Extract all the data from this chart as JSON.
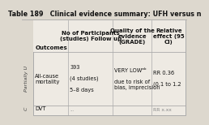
{
  "title": "Table 189   Clinical evidence summary: UFH versus n",
  "col_headers": [
    "Outcomes",
    "No of Participants\n(studies) Follow up",
    "Quality of the\nevidence\n(GRADE)",
    "Relative\neffect (95\nCI)"
  ],
  "row1_col0": "All-cause\nmortality",
  "row1_col1": "393\n\n(4 studies)\n\n5–8 days",
  "row1_col2": "VERY LOWᵃᵇ\n\ndue to risk of\nbias, imprecision",
  "row1_col3": "RR 0.36\n\n(0.1 to 1.2",
  "row2_col0": "DVT",
  "row2_col1": "...",
  "row2_col3": "RR x.xx",
  "side_label": "Partially U",
  "side_label2": "C",
  "bg_color": "#ddd8ce",
  "table_bg": "#eeeae3",
  "border_color": "#aaaaaa",
  "title_fontsize": 5.8,
  "header_fontsize": 5.0,
  "cell_fontsize": 4.8,
  "side_fontsize": 4.5
}
